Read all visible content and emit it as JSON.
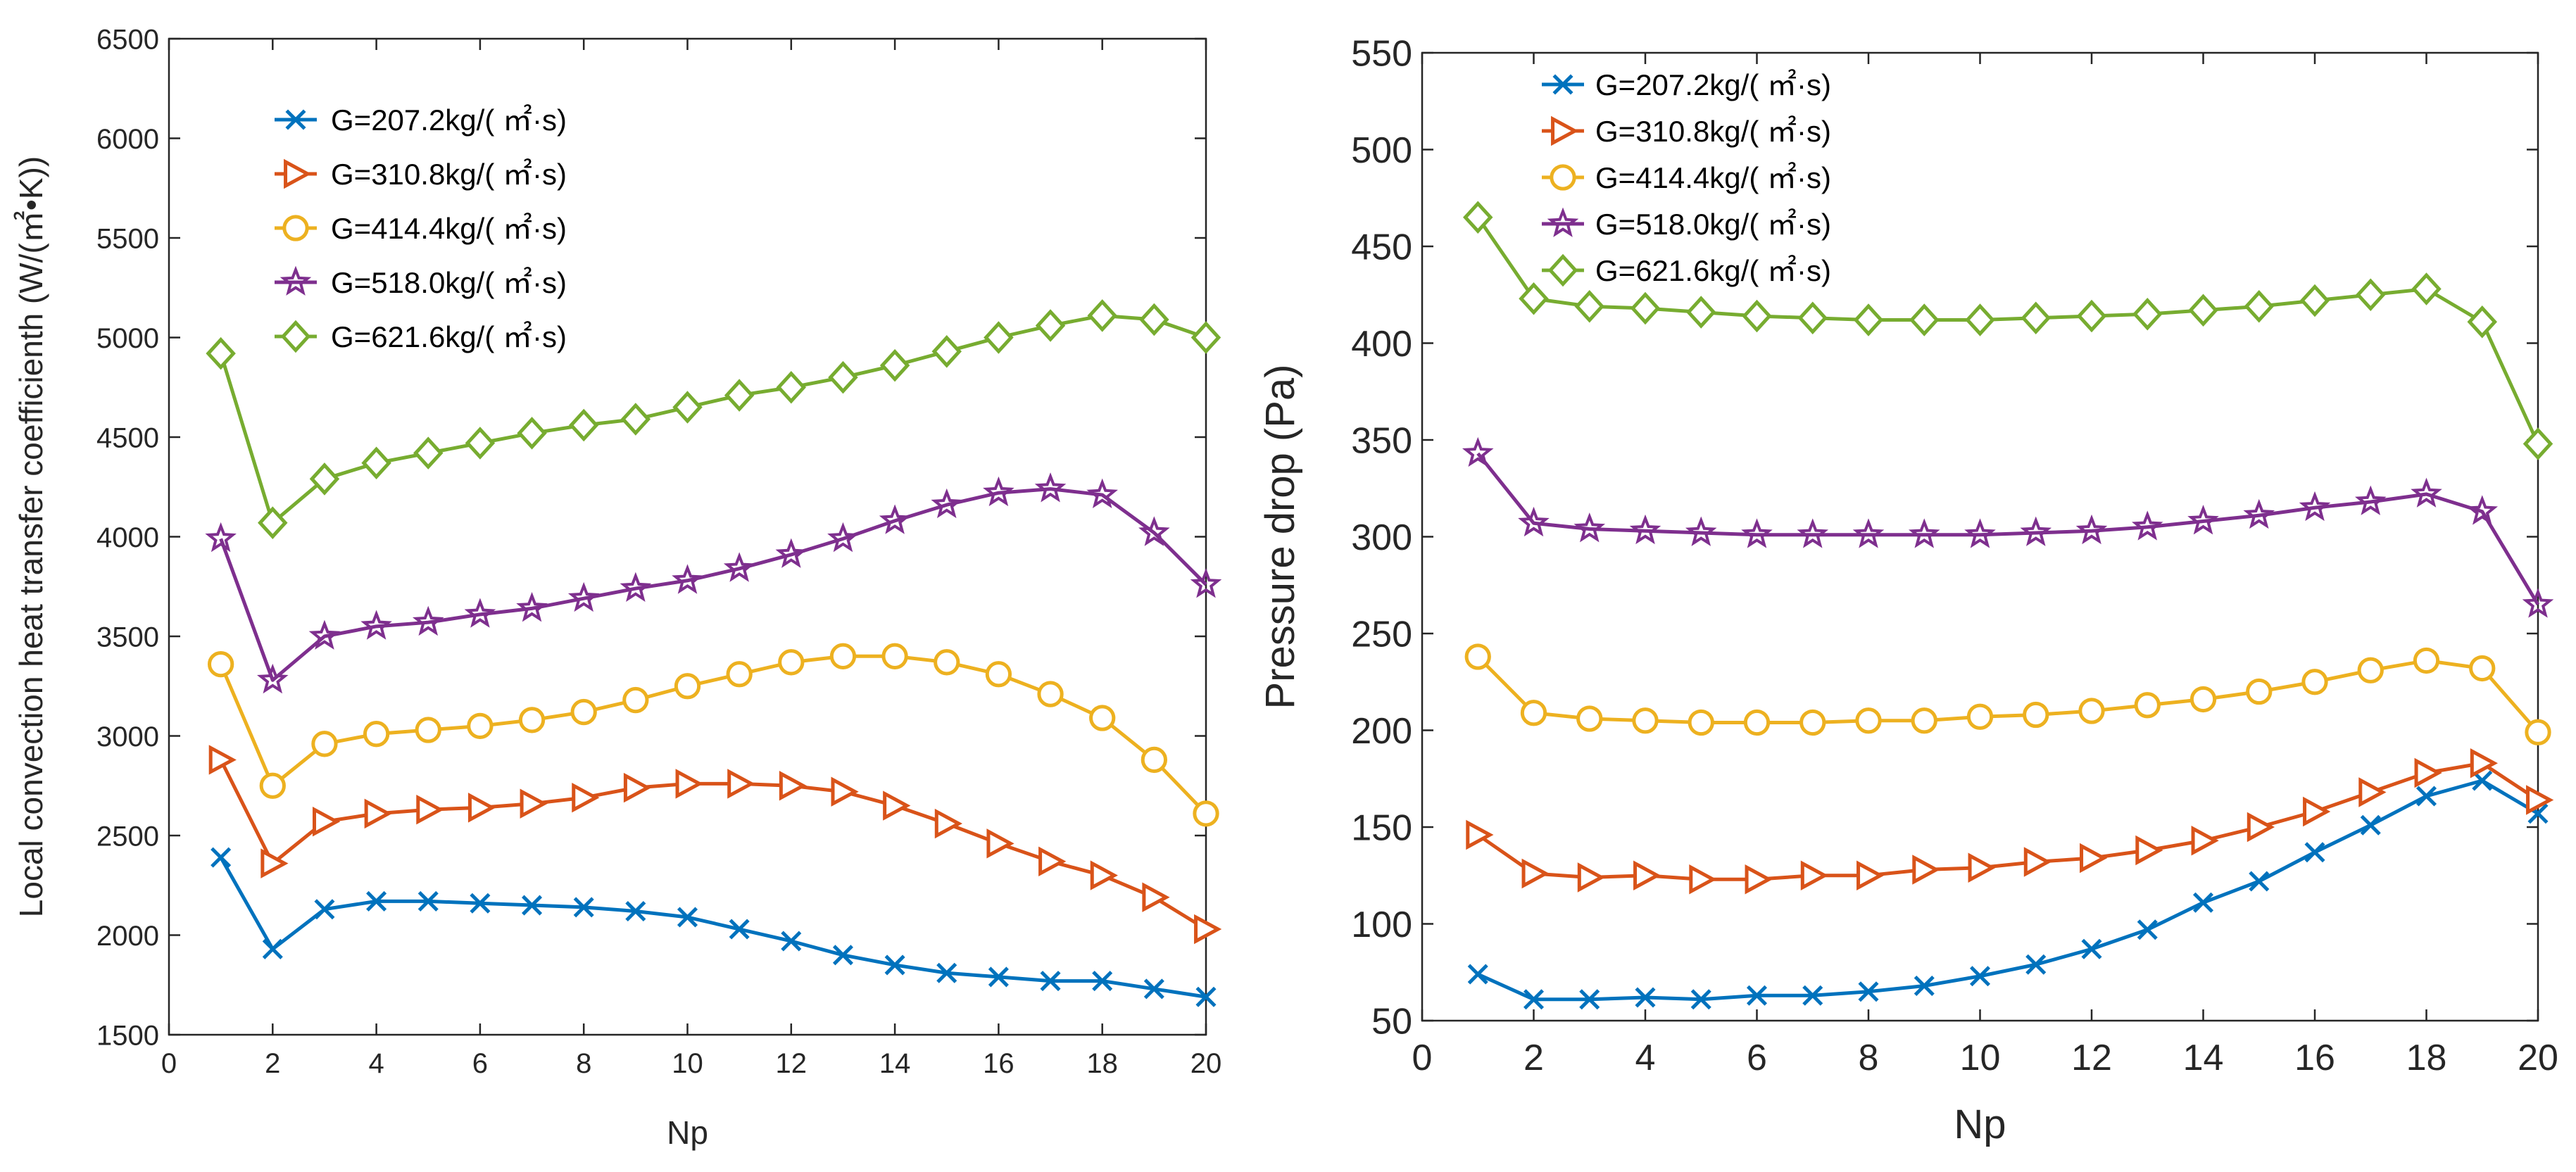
{
  "chart_data": [
    {
      "type": "line",
      "title": "",
      "xlabel": "Np",
      "ylabel": "Local convection heat transfer coefficienth (W/(㎡•K))",
      "xlim": [
        0,
        20
      ],
      "ylim": [
        1500,
        6500
      ],
      "xticks": [
        "0",
        "2",
        "4",
        "6",
        "8",
        "10",
        "12",
        "14",
        "16",
        "18",
        "20"
      ],
      "yticks": [
        "1500",
        "2000",
        "2500",
        "3000",
        "3500",
        "4000",
        "4500",
        "5000",
        "5500",
        "6000",
        "6500"
      ],
      "legend_position": "top-left",
      "grid": false,
      "x": [
        1,
        2,
        3,
        4,
        5,
        6,
        7,
        8,
        9,
        10,
        11,
        12,
        13,
        14,
        15,
        16,
        17,
        18,
        19,
        20
      ],
      "series": [
        {
          "name": "G=207.2kg/( ㎡·s)",
          "color": "#0072BD",
          "marker": "x",
          "values": [
            2390,
            1930,
            2130,
            2170,
            2170,
            2160,
            2150,
            2140,
            2120,
            2090,
            2030,
            1970,
            1900,
            1850,
            1810,
            1790,
            1770,
            1770,
            1730,
            1690
          ]
        },
        {
          "name": "G=310.8kg/( ㎡·s)",
          "color": "#D95319",
          "marker": "triangle-right",
          "values": [
            2880,
            2360,
            2570,
            2610,
            2630,
            2640,
            2660,
            2690,
            2740,
            2760,
            2760,
            2750,
            2720,
            2650,
            2560,
            2460,
            2370,
            2300,
            2190,
            2030
          ]
        },
        {
          "name": "G=414.4kg/( ㎡·s)",
          "color": "#EDB120",
          "marker": "circle",
          "values": [
            3360,
            2750,
            2960,
            3010,
            3030,
            3050,
            3080,
            3120,
            3180,
            3250,
            3310,
            3370,
            3400,
            3400,
            3370,
            3310,
            3210,
            3090,
            2880,
            2610
          ]
        },
        {
          "name": "G=518.0kg/( ㎡·s)",
          "color": "#7E2F8E",
          "marker": "star",
          "values": [
            3990,
            3280,
            3500,
            3550,
            3570,
            3610,
            3640,
            3690,
            3740,
            3780,
            3840,
            3910,
            3990,
            4080,
            4160,
            4220,
            4240,
            4210,
            4020,
            3760
          ]
        },
        {
          "name": "G=621.6kg/( ㎡·s)",
          "color": "#77AC30",
          "marker": "diamond",
          "values": [
            4920,
            4070,
            4290,
            4370,
            4420,
            4470,
            4520,
            4560,
            4590,
            4650,
            4710,
            4750,
            4800,
            4860,
            4930,
            5000,
            5060,
            5110,
            5090,
            5000
          ]
        }
      ]
    },
    {
      "type": "line",
      "title": "",
      "xlabel": "Np",
      "ylabel": "Pressure drop (Pa)",
      "xlim": [
        0,
        20
      ],
      "ylim": [
        50,
        550
      ],
      "xticks": [
        "0",
        "2",
        "4",
        "6",
        "8",
        "10",
        "12",
        "14",
        "16",
        "18",
        "20"
      ],
      "yticks": [
        "50",
        "100",
        "150",
        "200",
        "250",
        "300",
        "350",
        "400",
        "450",
        "500",
        "550"
      ],
      "legend_position": "top-left",
      "grid": false,
      "x": [
        1,
        2,
        3,
        4,
        5,
        6,
        7,
        8,
        9,
        10,
        11,
        12,
        13,
        14,
        15,
        16,
        17,
        18,
        19,
        20
      ],
      "series": [
        {
          "name": "G=207.2kg/( ㎡·s)",
          "color": "#0072BD",
          "marker": "x",
          "values": [
            74,
            61,
            61,
            62,
            61,
            63,
            63,
            65,
            68,
            73,
            79,
            87,
            97,
            111,
            122,
            137,
            151,
            166,
            174,
            157
          ]
        },
        {
          "name": "G=310.8kg/( ㎡·s)",
          "color": "#D95319",
          "marker": "triangle-right",
          "values": [
            146,
            126,
            124,
            125,
            123,
            123,
            125,
            125,
            128,
            129,
            132,
            134,
            138,
            143,
            150,
            158,
            168,
            178,
            183,
            164
          ]
        },
        {
          "name": "G=414.4kg/( ㎡·s)",
          "color": "#EDB120",
          "marker": "circle",
          "values": [
            238,
            209,
            206,
            205,
            204,
            204,
            204,
            205,
            205,
            207,
            208,
            210,
            213,
            216,
            220,
            225,
            231,
            236,
            232,
            199
          ]
        },
        {
          "name": "G=518.0kg/( ㎡·s)",
          "color": "#7E2F8E",
          "marker": "star",
          "values": [
            343,
            307,
            304,
            303,
            302,
            301,
            301,
            301,
            301,
            301,
            302,
            303,
            305,
            308,
            311,
            315,
            318,
            322,
            313,
            265
          ]
        },
        {
          "name": "G=621.6kg/( ㎡·s)",
          "color": "#77AC30",
          "marker": "diamond",
          "values": [
            465,
            423,
            419,
            418,
            416,
            414,
            413,
            412,
            412,
            412,
            413,
            414,
            415,
            417,
            419,
            422,
            425,
            428,
            411,
            348
          ]
        }
      ]
    }
  ]
}
